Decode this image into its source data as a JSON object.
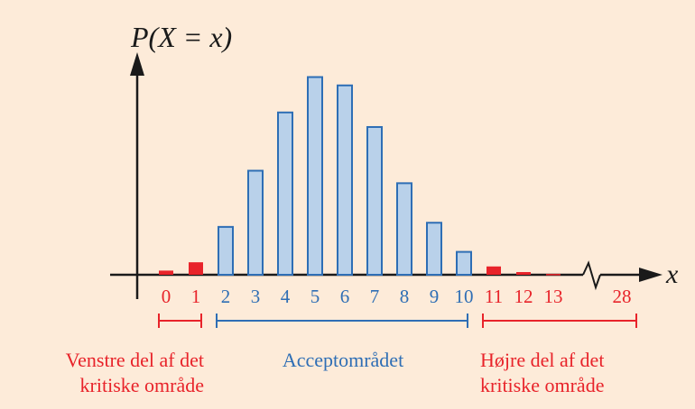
{
  "chart_data": {
    "type": "bar",
    "y_axis_label": "P(X = x)",
    "x_axis_label": "x",
    "categories": [
      "0",
      "1",
      "2",
      "3",
      "4",
      "5",
      "6",
      "7",
      "8",
      "9",
      "10",
      "11",
      "12",
      "13",
      "28"
    ],
    "values": [
      0.002,
      0.006,
      0.023,
      0.05,
      0.078,
      0.095,
      0.091,
      0.071,
      0.044,
      0.025,
      0.011,
      0.004,
      0.0013,
      0.0004,
      0
    ],
    "ylim": [
      0,
      0.1
    ],
    "axis_break_between": [
      "13",
      "28"
    ],
    "regions": [
      {
        "name": "left",
        "from": "0",
        "to": "1",
        "color": "#e8232a",
        "label_lines": [
          "Venstre del af det",
          "kritiske område"
        ]
      },
      {
        "name": "acceptance",
        "from": "2",
        "to": "10",
        "color": "#2e6eb5",
        "label_lines": [
          "Acceptområdet"
        ]
      },
      {
        "name": "right",
        "from": "11",
        "to": "28",
        "color": "#e8232a",
        "label_lines": [
          "Højre del af det",
          "kritiske område"
        ]
      }
    ],
    "colors": {
      "critical": "#e8232a",
      "acceptance_fill": "#b9d1ea",
      "acceptance_stroke": "#2e6eb5",
      "axis": "#1a1a1a"
    }
  }
}
